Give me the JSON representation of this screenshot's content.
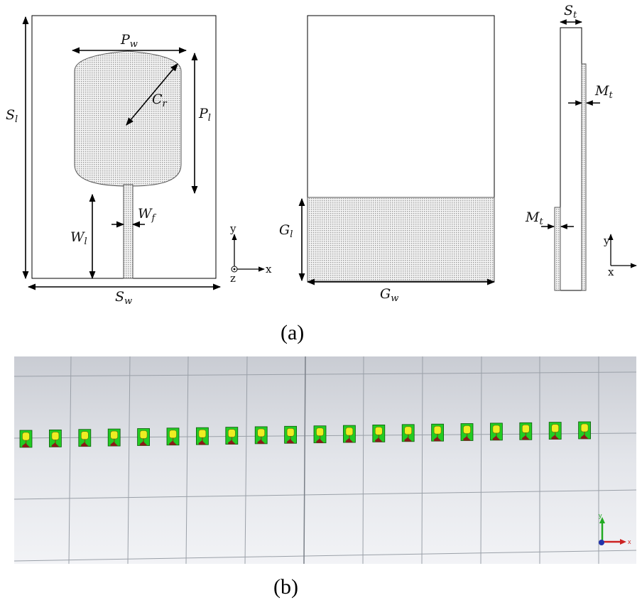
{
  "figure": {
    "caption_a": "(a)",
    "caption_b": "(b)"
  },
  "front_view": {
    "labels": {
      "Pw": {
        "main": "P",
        "sub": "w"
      },
      "Cr": {
        "main": "C",
        "sub": "r"
      },
      "Pl": {
        "main": "P",
        "sub": "l"
      },
      "Sl": {
        "main": "S",
        "sub": "l"
      },
      "Wf": {
        "main": "W",
        "sub": "f"
      },
      "Wl": {
        "main": "W",
        "sub": "l"
      },
      "Sw": {
        "main": "S",
        "sub": "w"
      }
    },
    "axes": {
      "y": "y",
      "x": "x",
      "z": "z"
    }
  },
  "back_view": {
    "labels": {
      "Gl": {
        "main": "G",
        "sub": "l"
      },
      "Gw": {
        "main": "G",
        "sub": "w"
      }
    }
  },
  "side_view": {
    "labels": {
      "St": {
        "main": "S",
        "sub": "t"
      },
      "Mt_top": {
        "main": "M",
        "sub": "t"
      },
      "Mt_bottom": {
        "main": "M",
        "sub": "t"
      }
    },
    "axes": {
      "y": "y",
      "x": "x"
    }
  },
  "array_view": {
    "element_count": 20,
    "colors": {
      "substrate": "#22cc22",
      "patch": "#eeee22",
      "ground": "#8a1a1a",
      "background": "#dcdfe6"
    },
    "axes": {
      "y": "y",
      "x": "x"
    }
  }
}
